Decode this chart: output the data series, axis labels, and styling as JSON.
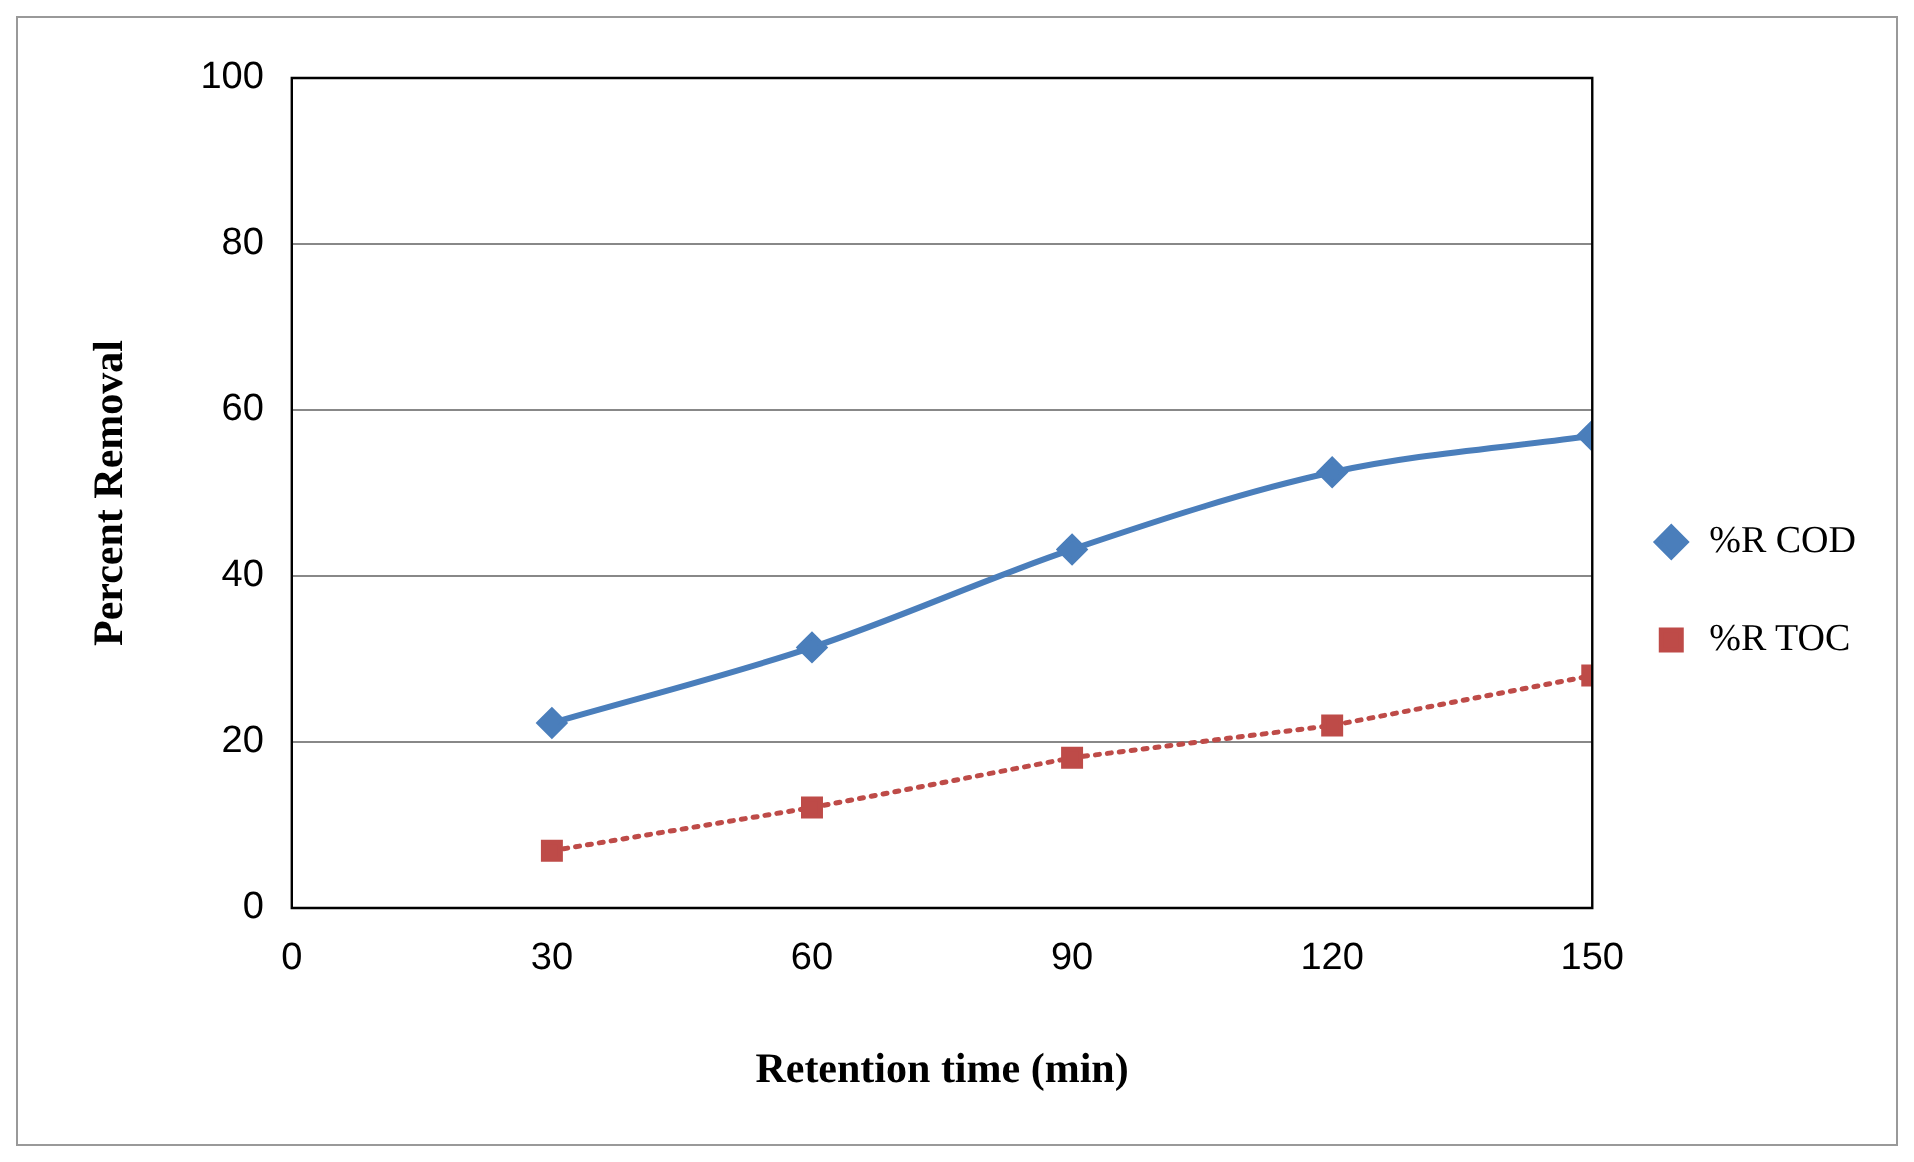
{
  "chart_data": {
    "type": "line",
    "xlabel": "Retention time (min)",
    "ylabel": "Percent Removal",
    "x": [
      30,
      60,
      90,
      120,
      150
    ],
    "series": [
      {
        "name": "%R COD",
        "color": "#4a7ebb",
        "values": [
          22.3,
          31.4,
          43.2,
          52.5,
          56.9
        ],
        "marker": "diamond",
        "line_style": "solid"
      },
      {
        "name": "%R TOC",
        "color": "#be4b48",
        "values": [
          6.9,
          12.1,
          18.1,
          22,
          28
        ],
        "marker": "square",
        "line_style": "dotted"
      }
    ],
    "xlim": [
      0,
      150
    ],
    "xticks": [
      0,
      30,
      60,
      90,
      120,
      150
    ],
    "ylim": [
      0,
      100
    ],
    "yticks": [
      0,
      20,
      40,
      60,
      80,
      100
    ],
    "grid": "y",
    "legend": "right"
  }
}
